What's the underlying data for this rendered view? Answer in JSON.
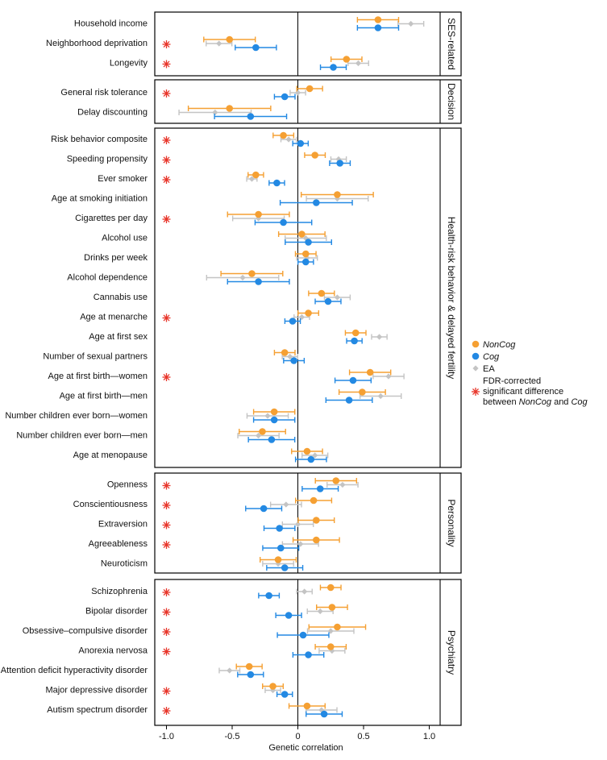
{
  "chart_data": {
    "type": "scatter",
    "xlabel": "Genetic correlation",
    "xlim": [
      -1.1,
      1.1
    ],
    "xticks": [
      -1.0,
      -0.5,
      0,
      0.5,
      1.0
    ],
    "xtick_labels": [
      "-1.0",
      "-0.5",
      "0",
      "0.5",
      "1.0"
    ],
    "colors": {
      "NonCog": "#f5a033",
      "Cog": "#2389e3",
      "EA": "#c4c4c4",
      "star": "#e8352a"
    },
    "legend": {
      "placement": "right",
      "entries": [
        {
          "key": "NonCog",
          "label": "NonCog",
          "italic": true,
          "marker": "circle"
        },
        {
          "key": "Cog",
          "label": "Cog",
          "italic": true,
          "marker": "circle"
        },
        {
          "key": "EA",
          "label": "EA",
          "italic": false,
          "marker": "diamond"
        },
        {
          "key": "star",
          "label_lines": [
            "FDR-corrected",
            "significant difference",
            "between NonCog and Cog"
          ],
          "marker": "asterisk"
        }
      ]
    },
    "panels": [
      {
        "title": "SES-related",
        "rows": [
          {
            "label": "Household income",
            "star": false,
            "noncog": [
              0.61,
              0.08
            ],
            "cog": [
              0.61,
              0.08
            ],
            "ea": [
              0.86,
              0.05
            ]
          },
          {
            "label": "Neighborhood deprivation",
            "star": true,
            "noncog": [
              -0.52,
              0.1
            ],
            "cog": [
              -0.32,
              0.08
            ],
            "ea": [
              -0.6,
              0.05
            ]
          },
          {
            "label": "Longevity",
            "star": true,
            "noncog": [
              0.37,
              0.06
            ],
            "cog": [
              0.27,
              0.05
            ],
            "ea": [
              0.46,
              0.04
            ]
          }
        ]
      },
      {
        "title": "Decision",
        "rows": [
          {
            "label": "General risk tolerance",
            "star": true,
            "noncog": [
              0.09,
              0.05
            ],
            "cog": [
              -0.1,
              0.04
            ],
            "ea": [
              0.0,
              0.03
            ]
          },
          {
            "label": "Delay discounting",
            "star": false,
            "noncog": [
              -0.52,
              0.16
            ],
            "cog": [
              -0.36,
              0.14
            ],
            "ea": [
              -0.63,
              0.14
            ]
          }
        ]
      },
      {
        "title": "Health-risk behavior & delayed fertility",
        "rows": [
          {
            "label": "Risk behavior composite",
            "star": true,
            "noncog": [
              -0.11,
              0.04
            ],
            "cog": [
              0.02,
              0.03
            ],
            "ea": [
              -0.07,
              0.03
            ]
          },
          {
            "label": "Speeding propensity",
            "star": true,
            "noncog": [
              0.13,
              0.04
            ],
            "cog": [
              0.32,
              0.04
            ],
            "ea": [
              0.31,
              0.03
            ]
          },
          {
            "label": "Ever smoker",
            "star": true,
            "noncog": [
              -0.32,
              0.03
            ],
            "cog": [
              -0.16,
              0.03
            ],
            "ea": [
              -0.35,
              0.02
            ]
          },
          {
            "label": "Age at smoking initiation",
            "star": false,
            "noncog": [
              0.3,
              0.14
            ],
            "cog": [
              0.14,
              0.14
            ],
            "ea": [
              0.3,
              0.12
            ]
          },
          {
            "label": "Cigarettes per day",
            "star": true,
            "noncog": [
              -0.3,
              0.12
            ],
            "cog": [
              -0.11,
              0.11
            ],
            "ea": [
              -0.3,
              0.1
            ]
          },
          {
            "label": "Alcohol use",
            "star": false,
            "noncog": [
              0.03,
              0.09
            ],
            "cog": [
              0.08,
              0.09
            ],
            "ea": [
              0.06,
              0.08
            ]
          },
          {
            "label": "Drinks per week",
            "star": false,
            "noncog": [
              0.06,
              0.04
            ],
            "cog": [
              0.06,
              0.03
            ],
            "ea": [
              0.07,
              0.04
            ]
          },
          {
            "label": "Alcohol dependence",
            "star": false,
            "noncog": [
              -0.35,
              0.12
            ],
            "cog": [
              -0.3,
              0.12
            ],
            "ea": [
              -0.42,
              0.14
            ]
          },
          {
            "label": "Cannabis use",
            "star": false,
            "noncog": [
              0.18,
              0.05
            ],
            "cog": [
              0.23,
              0.05
            ],
            "ea": [
              0.3,
              0.05
            ]
          },
          {
            "label": "Age at menarche",
            "star": true,
            "noncog": [
              0.08,
              0.04
            ],
            "cog": [
              -0.04,
              0.03
            ],
            "ea": [
              0.03,
              0.03
            ]
          },
          {
            "label": "Age at first sex",
            "star": false,
            "noncog": [
              0.44,
              0.04
            ],
            "cog": [
              0.43,
              0.03
            ],
            "ea": [
              0.62,
              0.03
            ]
          },
          {
            "label": "Number of sexual partners",
            "star": false,
            "noncog": [
              -0.1,
              0.04
            ],
            "cog": [
              -0.03,
              0.04
            ],
            "ea": [
              -0.06,
              0.03
            ]
          },
          {
            "label": "Age at first birth—women",
            "star": true,
            "noncog": [
              0.55,
              0.08
            ],
            "cog": [
              0.42,
              0.07
            ],
            "ea": [
              0.69,
              0.06
            ]
          },
          {
            "label": "Age at first birth—men",
            "star": false,
            "noncog": [
              0.49,
              0.09
            ],
            "cog": [
              0.39,
              0.09
            ],
            "ea": [
              0.63,
              0.08
            ]
          },
          {
            "label": "Number children ever born—women",
            "star": false,
            "noncog": [
              -0.18,
              0.08
            ],
            "cog": [
              -0.18,
              0.08
            ],
            "ea": [
              -0.23,
              0.08
            ]
          },
          {
            "label": "Number children ever born—men",
            "star": false,
            "noncog": [
              -0.27,
              0.09
            ],
            "cog": [
              -0.2,
              0.09
            ],
            "ea": [
              -0.3,
              0.08
            ]
          },
          {
            "label": "Age at menopause",
            "star": false,
            "noncog": [
              0.07,
              0.06
            ],
            "cog": [
              0.1,
              0.06
            ],
            "ea": [
              0.13,
              0.05
            ]
          }
        ]
      },
      {
        "title": "Personality",
        "rows": [
          {
            "label": "Openness",
            "star": true,
            "noncog": [
              0.29,
              0.08
            ],
            "cog": [
              0.17,
              0.07
            ],
            "ea": [
              0.34,
              0.06
            ]
          },
          {
            "label": "Conscientiousness",
            "star": true,
            "noncog": [
              0.12,
              0.07
            ],
            "cog": [
              -0.26,
              0.07
            ],
            "ea": [
              -0.09,
              0.06
            ]
          },
          {
            "label": "Extraversion",
            "star": true,
            "noncog": [
              0.14,
              0.07
            ],
            "cog": [
              -0.14,
              0.06
            ],
            "ea": [
              0.0,
              0.06
            ]
          },
          {
            "label": "Agreeableness",
            "star": true,
            "noncog": [
              0.14,
              0.09
            ],
            "cog": [
              -0.13,
              0.07
            ],
            "ea": [
              0.02,
              0.07
            ]
          },
          {
            "label": "Neuroticism",
            "star": false,
            "noncog": [
              -0.15,
              0.07
            ],
            "cog": [
              -0.1,
              0.07
            ],
            "ea": [
              -0.15,
              0.06
            ]
          }
        ]
      },
      {
        "title": "Psychiatry",
        "rows": [
          {
            "label": "Schizophrenia",
            "star": true,
            "noncog": [
              0.25,
              0.04
            ],
            "cog": [
              -0.22,
              0.04
            ],
            "ea": [
              0.05,
              0.03
            ]
          },
          {
            "label": "Bipolar disorder",
            "star": true,
            "noncog": [
              0.26,
              0.06
            ],
            "cog": [
              -0.07,
              0.05
            ],
            "ea": [
              0.17,
              0.05
            ]
          },
          {
            "label": "Obsessive–compulsive disorder",
            "star": true,
            "noncog": [
              0.3,
              0.11
            ],
            "cog": [
              0.04,
              0.1
            ],
            "ea": [
              0.25,
              0.09
            ]
          },
          {
            "label": "Anorexia nervosa",
            "star": true,
            "noncog": [
              0.25,
              0.06
            ],
            "cog": [
              0.08,
              0.06
            ],
            "ea": [
              0.26,
              0.05
            ]
          },
          {
            "label": "Attention deficit hyperactivity disorder",
            "star": false,
            "noncog": [
              -0.37,
              0.05
            ],
            "cog": [
              -0.36,
              0.05
            ],
            "ea": [
              -0.52,
              0.04
            ]
          },
          {
            "label": "Major depressive disorder",
            "star": true,
            "noncog": [
              -0.19,
              0.04
            ],
            "cog": [
              -0.1,
              0.03
            ],
            "ea": [
              -0.19,
              0.03
            ]
          },
          {
            "label": "Autism spectrum disorder",
            "star": true,
            "noncog": [
              0.07,
              0.07
            ],
            "cog": [
              0.2,
              0.07
            ],
            "ea": [
              0.18,
              0.06
            ]
          }
        ]
      }
    ]
  }
}
